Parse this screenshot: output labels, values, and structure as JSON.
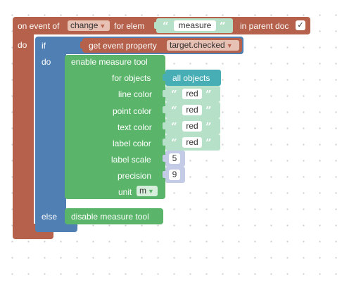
{
  "event_block": {
    "prefix": "on event of",
    "event_dropdown": "change",
    "for_elem_label": "for elem",
    "elem_text": "measure",
    "in_parent_doc_label": "in parent doc",
    "in_parent_doc_checked": true,
    "check_glyph": "✓",
    "do_label": "do"
  },
  "if_block": {
    "if_label": "if",
    "do_label": "do",
    "else_label": "else",
    "condition": {
      "label": "get event property",
      "property_dropdown": "target.checked"
    }
  },
  "enable_block": {
    "title": "enable measure tool",
    "for_objects_label": "for objects",
    "for_objects_value": "all objects",
    "line_color_label": "line color",
    "line_color_value": "red",
    "point_color_label": "point color",
    "point_color_value": "red",
    "text_color_label": "text color",
    "text_color_value": "red",
    "label_color_label": "label color",
    "label_color_value": "red",
    "label_scale_label": "label scale",
    "label_scale_value": "5",
    "precision_label": "precision",
    "precision_value": "9",
    "unit_label": "unit",
    "unit_dropdown": "m"
  },
  "disable_block": {
    "title": "disable measure tool"
  },
  "glyphs": {
    "open_quote": "“",
    "close_quote": "”",
    "dropdown_arrow": "▼"
  },
  "colors": {
    "event_block": "#b5614b",
    "if_block": "#4f7fb3",
    "measure_block": "#5ab56a",
    "text_block": "#b7e0c8",
    "objects_block": "#47aeb5",
    "number_block": "#c4cbe6"
  }
}
